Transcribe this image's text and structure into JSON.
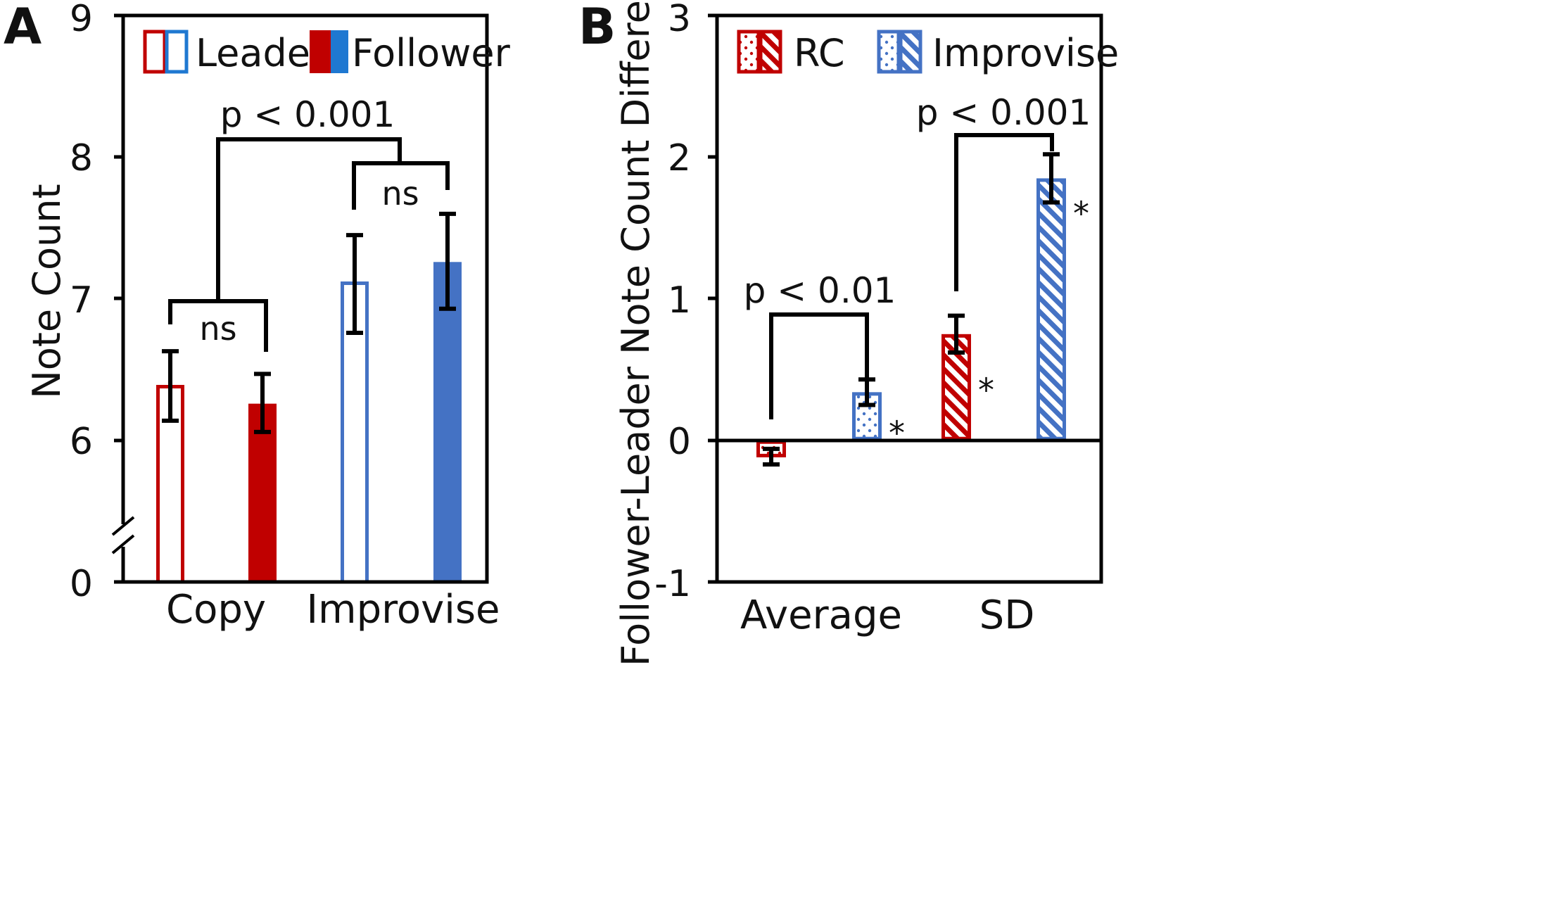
{
  "chart_data": [
    {
      "panel": "A",
      "type": "bar",
      "ylabel": "Note Count",
      "ylim": [
        6,
        9
      ],
      "yticks": [
        "9",
        "8",
        "7",
        "6",
        "0"
      ],
      "axis_break": true,
      "categories": [
        "Copy",
        "Improvise"
      ],
      "legend": [
        "Leader",
        "Follower"
      ],
      "bars": [
        {
          "category": "Copy",
          "series": "Leader",
          "value": 6.38,
          "err_low": 6.14,
          "err_high": 6.63,
          "color": "#c00000",
          "style": "outline"
        },
        {
          "category": "Copy",
          "series": "Follower",
          "value": 6.26,
          "err_low": 6.06,
          "err_high": 6.47,
          "color": "#c00000",
          "style": "solid"
        },
        {
          "category": "Improvise",
          "series": "Leader",
          "value": 7.11,
          "err_low": 6.76,
          "err_high": 7.45,
          "color": "#4472c4",
          "style": "outline"
        },
        {
          "category": "Improvise",
          "series": "Follower",
          "value": 7.26,
          "err_low": 6.93,
          "err_high": 7.6,
          "color": "#4472c4",
          "style": "solid"
        }
      ],
      "annotations": {
        "main": "p < 0.001",
        "copy": "ns",
        "improvise": "ns"
      }
    },
    {
      "panel": "B",
      "type": "bar",
      "ylabel": "Follower-Leader Note Count Difference",
      "ylim": [
        -1,
        3
      ],
      "yticks": [
        "3",
        "2",
        "1",
        "0",
        "-1"
      ],
      "categories": [
        "Average",
        "SD"
      ],
      "legend": [
        "RC",
        "Improvise"
      ],
      "bars": [
        {
          "category": "Average",
          "series": "RC",
          "value": -0.12,
          "err_low": -0.17,
          "err_high": -0.06,
          "color": "#c00000",
          "pattern": "dots",
          "star": ""
        },
        {
          "category": "Average",
          "series": "Improvise",
          "value": 0.34,
          "err_low": 0.25,
          "err_high": 0.43,
          "color": "#4472c4",
          "pattern": "dots",
          "star": "*"
        },
        {
          "category": "SD",
          "series": "RC",
          "value": 0.75,
          "err_low": 0.62,
          "err_high": 0.88,
          "color": "#c00000",
          "pattern": "stripes",
          "star": "*"
        },
        {
          "category": "SD",
          "series": "Improvise",
          "value": 1.85,
          "err_low": 1.68,
          "err_high": 2.02,
          "color": "#4472c4",
          "pattern": "stripes",
          "star": "*"
        }
      ],
      "annotations": {
        "average": "p < 0.01",
        "sd": "p < 0.001"
      }
    }
  ]
}
